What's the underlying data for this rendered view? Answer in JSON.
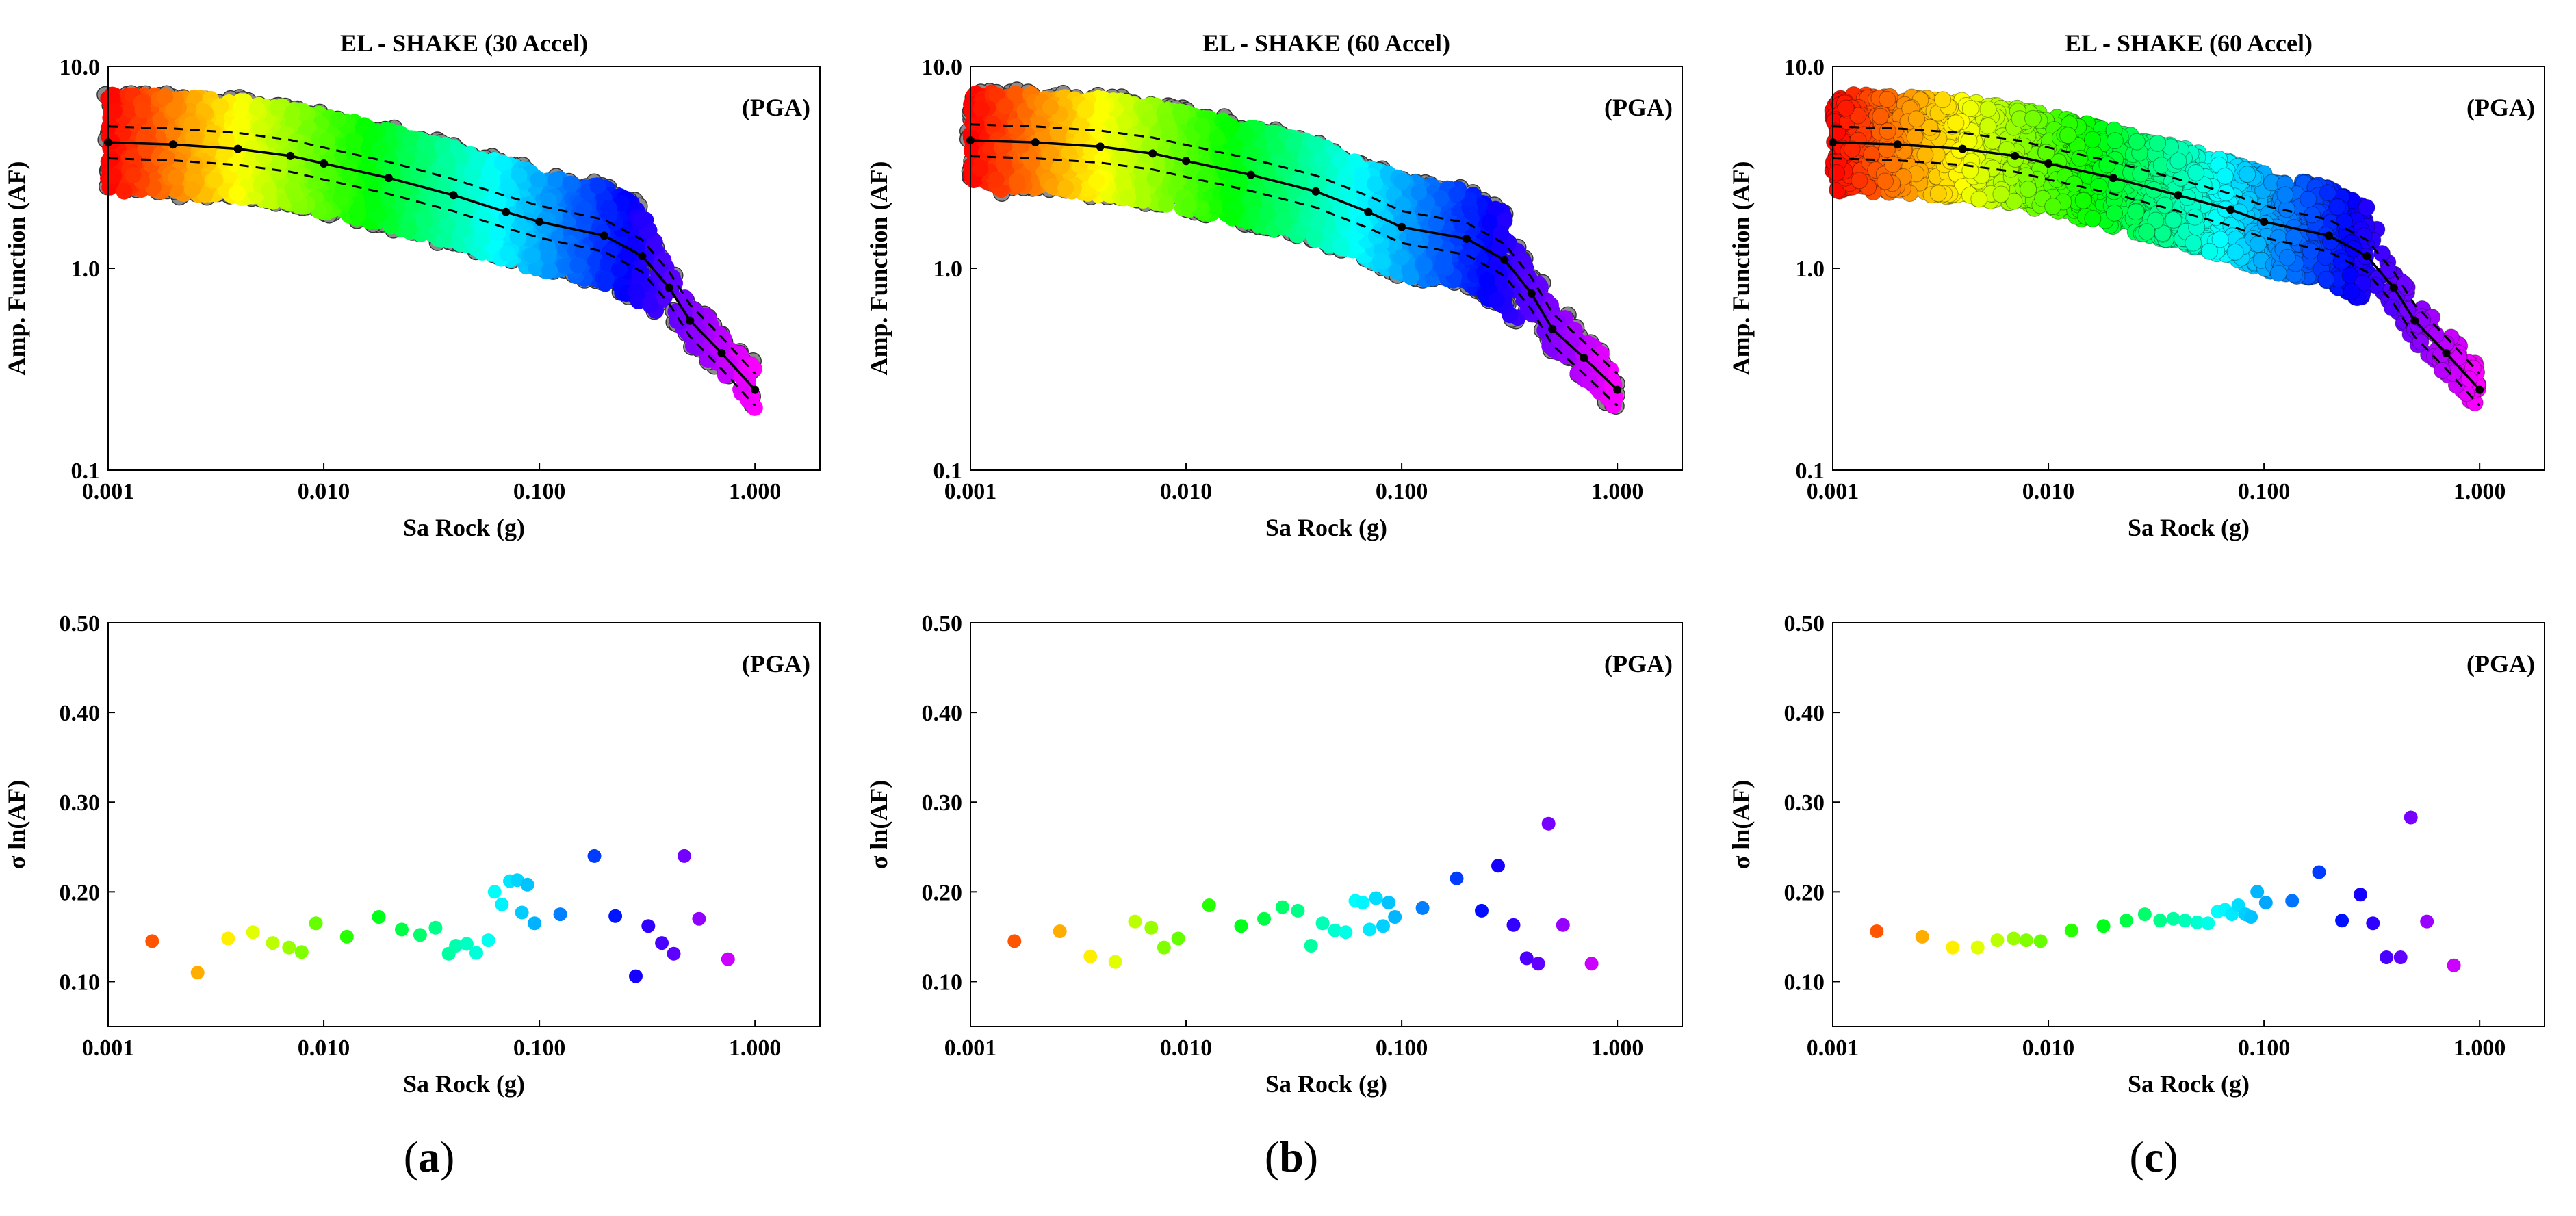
{
  "figure": {
    "panels": [
      {
        "id": "a",
        "caption_open": "(",
        "caption_letter": "a",
        "caption_close": ")"
      },
      {
        "id": "b",
        "caption_open": "(",
        "caption_letter": "b",
        "caption_close": ")"
      },
      {
        "id": "c",
        "caption_open": "(",
        "caption_letter": "c",
        "caption_close": ")"
      }
    ]
  },
  "chart_data": [
    {
      "panel": "a",
      "type": "scatter",
      "title": "EL - SHAKE (30 Accel)",
      "annotation": "(PGA)",
      "xlabel": "Sa Rock (g)",
      "ylabel": "Amp. Function (AF)",
      "xscale": "log",
      "yscale": "log",
      "xlim": [
        0.001,
        2.0
      ],
      "ylim": [
        0.1,
        10.0
      ],
      "xticks": [
        0.001,
        0.01,
        0.1,
        1.0
      ],
      "xtick_labels": [
        "0.001",
        "0.010",
        "0.100",
        "1.000"
      ],
      "yticks": [
        0.1,
        1.0,
        10.0
      ],
      "ytick_labels": [
        "0.1",
        "1.0",
        "10.0"
      ],
      "gray_points": true,
      "median": {
        "x": [
          0.001,
          0.002,
          0.004,
          0.007,
          0.01,
          0.02,
          0.04,
          0.07,
          0.1,
          0.2,
          0.3,
          0.4,
          0.5,
          0.7,
          1.0
        ],
        "y": [
          4.2,
          4.1,
          3.9,
          3.6,
          3.3,
          2.8,
          2.3,
          1.9,
          1.7,
          1.45,
          1.15,
          0.8,
          0.55,
          0.38,
          0.25
        ]
      },
      "band_factor": 1.2
    },
    {
      "panel": "b",
      "type": "scatter",
      "title": "EL - SHAKE (60 Accel)",
      "annotation": "(PGA)",
      "xlabel": "Sa Rock (g)",
      "ylabel": "Amp. Function (AF)",
      "xscale": "log",
      "yscale": "log",
      "xlim": [
        0.001,
        2.0
      ],
      "ylim": [
        0.1,
        10.0
      ],
      "xticks": [
        0.001,
        0.01,
        0.1,
        1.0
      ],
      "xtick_labels": [
        "0.001",
        "0.010",
        "0.100",
        "1.000"
      ],
      "yticks": [
        0.1,
        1.0,
        10.0
      ],
      "ytick_labels": [
        "0.1",
        "1.0",
        "10.0"
      ],
      "gray_points": true,
      "median": {
        "x": [
          0.001,
          0.002,
          0.004,
          0.007,
          0.01,
          0.02,
          0.04,
          0.07,
          0.1,
          0.2,
          0.3,
          0.4,
          0.5,
          0.7,
          1.0
        ],
        "y": [
          4.3,
          4.2,
          4.0,
          3.7,
          3.4,
          2.9,
          2.4,
          1.9,
          1.6,
          1.4,
          1.1,
          0.75,
          0.5,
          0.36,
          0.25
        ]
      },
      "band_factor": 1.2
    },
    {
      "panel": "c",
      "type": "scatter",
      "title": "EL - SHAKE (60 Accel)",
      "annotation": "(PGA)",
      "xlabel": "Sa Rock (g)",
      "ylabel": "Amp. Function (AF)",
      "xscale": "log",
      "yscale": "log",
      "xlim": [
        0.001,
        2.0
      ],
      "ylim": [
        0.1,
        10.0
      ],
      "xticks": [
        0.001,
        0.01,
        0.1,
        1.0
      ],
      "xtick_labels": [
        "0.001",
        "0.010",
        "0.100",
        "1.000"
      ],
      "yticks": [
        0.1,
        1.0,
        10.0
      ],
      "ytick_labels": [
        "0.1",
        "1.0",
        "10.0"
      ],
      "gray_points": false,
      "median": {
        "x": [
          0.001,
          0.002,
          0.004,
          0.007,
          0.01,
          0.02,
          0.04,
          0.07,
          0.1,
          0.2,
          0.3,
          0.4,
          0.5,
          0.7,
          1.0
        ],
        "y": [
          4.2,
          4.1,
          3.9,
          3.6,
          3.3,
          2.8,
          2.3,
          1.95,
          1.7,
          1.45,
          1.15,
          0.8,
          0.55,
          0.38,
          0.25
        ]
      },
      "band_factor": 1.2
    },
    {
      "panel": "a",
      "type": "scatter",
      "annotation": "(PGA)",
      "xlabel": "Sa Rock (g)",
      "ylabel": "σ ln(AF)",
      "xscale": "log",
      "xlim": [
        0.001,
        2.0
      ],
      "ylim": [
        0.05,
        0.5
      ],
      "xticks": [
        0.001,
        0.01,
        0.1,
        1.0
      ],
      "xtick_labels": [
        "0.001",
        "0.010",
        "0.100",
        "1.000"
      ],
      "yticks": [
        0.1,
        0.2,
        0.3,
        0.4,
        0.5
      ],
      "ytick_labels": [
        "0.10",
        "0.20",
        "0.30",
        "0.40",
        "0.50"
      ],
      "x": [
        0.0016,
        0.0026,
        0.0036,
        0.0047,
        0.0058,
        0.0069,
        0.0079,
        0.0092,
        0.0128,
        0.018,
        0.023,
        0.028,
        0.033,
        0.038,
        0.041,
        0.046,
        0.051,
        0.058,
        0.062,
        0.067,
        0.073,
        0.079,
        0.083,
        0.088,
        0.095,
        0.125,
        0.18,
        0.225,
        0.28,
        0.32,
        0.37,
        0.42,
        0.47,
        0.55,
        0.75
      ],
      "y": [
        0.145,
        0.11,
        0.148,
        0.155,
        0.143,
        0.138,
        0.133,
        0.165,
        0.15,
        0.172,
        0.158,
        0.152,
        0.16,
        0.131,
        0.14,
        0.142,
        0.132,
        0.146,
        0.2,
        0.186,
        0.212,
        0.213,
        0.177,
        0.208,
        0.165,
        0.175,
        0.24,
        0.173,
        0.106,
        0.162,
        0.143,
        0.131,
        0.24,
        0.17,
        0.125
      ]
    },
    {
      "panel": "b",
      "type": "scatter",
      "annotation": "(PGA)",
      "xlabel": "Sa Rock (g)",
      "ylabel": "σ ln(AF)",
      "xscale": "log",
      "xlim": [
        0.001,
        2.0
      ],
      "ylim": [
        0.05,
        0.5
      ],
      "xticks": [
        0.001,
        0.01,
        0.1,
        1.0
      ],
      "xtick_labels": [
        "0.001",
        "0.010",
        "0.100",
        "1.000"
      ],
      "yticks": [
        0.1,
        0.2,
        0.3,
        0.4,
        0.5
      ],
      "ytick_labels": [
        "0.10",
        "0.20",
        "0.30",
        "0.40",
        "0.50"
      ],
      "x": [
        0.0016,
        0.0026,
        0.0036,
        0.0047,
        0.0058,
        0.0069,
        0.0079,
        0.0092,
        0.0128,
        0.018,
        0.023,
        0.028,
        0.033,
        0.038,
        0.043,
        0.049,
        0.055,
        0.061,
        0.066,
        0.071,
        0.076,
        0.082,
        0.087,
        0.093,
        0.125,
        0.18,
        0.235,
        0.28,
        0.33,
        0.38,
        0.43,
        0.48,
        0.56,
        0.76
      ],
      "y": [
        0.145,
        0.156,
        0.128,
        0.122,
        0.167,
        0.16,
        0.138,
        0.148,
        0.185,
        0.162,
        0.17,
        0.183,
        0.179,
        0.14,
        0.165,
        0.157,
        0.155,
        0.19,
        0.188,
        0.158,
        0.193,
        0.162,
        0.188,
        0.172,
        0.182,
        0.215,
        0.179,
        0.229,
        0.163,
        0.126,
        0.12,
        0.276,
        0.163,
        0.12
      ]
    },
    {
      "panel": "c",
      "type": "scatter",
      "annotation": "(PGA)",
      "xlabel": "Sa Rock (g)",
      "ylabel": "σ ln(AF)",
      "xscale": "log",
      "xlim": [
        0.001,
        2.0
      ],
      "ylim": [
        0.05,
        0.5
      ],
      "xticks": [
        0.001,
        0.01,
        0.1,
        1.0
      ],
      "xtick_labels": [
        "0.001",
        "0.010",
        "0.100",
        "1.000"
      ],
      "yticks": [
        0.1,
        0.2,
        0.3,
        0.4,
        0.5
      ],
      "ytick_labels": [
        "0.10",
        "0.20",
        "0.30",
        "0.40",
        "0.50"
      ],
      "x": [
        0.0016,
        0.0026,
        0.0036,
        0.0047,
        0.0058,
        0.0069,
        0.0079,
        0.0092,
        0.0128,
        0.018,
        0.023,
        0.028,
        0.033,
        0.038,
        0.043,
        0.049,
        0.055,
        0.061,
        0.066,
        0.071,
        0.076,
        0.082,
        0.087,
        0.093,
        0.102,
        0.135,
        0.18,
        0.23,
        0.28,
        0.32,
        0.37,
        0.43,
        0.48,
        0.57,
        0.76
      ],
      "y": [
        0.156,
        0.15,
        0.138,
        0.138,
        0.146,
        0.148,
        0.146,
        0.145,
        0.157,
        0.162,
        0.168,
        0.175,
        0.168,
        0.17,
        0.168,
        0.166,
        0.165,
        0.178,
        0.18,
        0.175,
        0.185,
        0.175,
        0.172,
        0.2,
        0.188,
        0.19,
        0.222,
        0.168,
        0.197,
        0.165,
        0.127,
        0.127,
        0.283,
        0.167,
        0.118
      ]
    }
  ]
}
